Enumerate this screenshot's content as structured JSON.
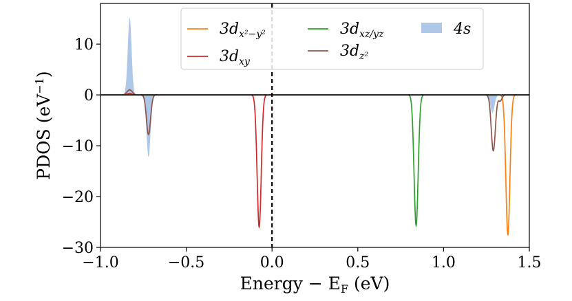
{
  "chart_data": {
    "type": "area",
    "title": "",
    "xlabel": "Energy − E",
    "xlabel_sub": "F",
    "xlabel_unit": " (eV)",
    "ylabel": "PDOS (eV",
    "ylabel_sup": "−1",
    "ylabel_close": ")",
    "xlim": [
      -1.0,
      1.5
    ],
    "ylim": [
      -30,
      18
    ],
    "xticks": [
      -1.0,
      -0.5,
      0.0,
      0.5,
      1.0,
      1.5
    ],
    "xtick_labels": [
      "−1.0",
      "−0.5",
      "0.0",
      "0.5",
      "1.0",
      "1.5"
    ],
    "yticks": [
      10,
      0,
      -10,
      -20,
      -30
    ],
    "ytick_labels": [
      "10",
      "0",
      "−10",
      "−20",
      "−30"
    ],
    "fermi_level_x": 0.0,
    "legend_position": "top-center",
    "series": [
      {
        "name": "3d_{x²−y²}",
        "legend_main": "3d",
        "legend_sub": "x²−y²",
        "color": "#ff7f0e",
        "style": "line",
        "peaks": [
          {
            "x": -0.83,
            "height": 0.3,
            "width": 0.012
          },
          {
            "x": 1.375,
            "height": -27.5,
            "width": 0.012
          }
        ]
      },
      {
        "name": "3d_{xy}",
        "legend_main": "3d",
        "legend_sub": "xy",
        "color": "#d62728",
        "style": "line",
        "peaks": [
          {
            "x": -0.83,
            "height": 0.3,
            "width": 0.012
          },
          {
            "x": -0.075,
            "height": -26.0,
            "width": 0.012
          }
        ]
      },
      {
        "name": "3d_{xz/yz}",
        "legend_main": "3d",
        "legend_sub": "xz/yz",
        "color": "#2ca02c",
        "style": "line",
        "peaks": [
          {
            "x": 0.84,
            "height": -25.7,
            "width": 0.012
          }
        ]
      },
      {
        "name": "3d_{z²}",
        "legend_main": "3d",
        "legend_sub": "z²",
        "color": "#8c564b",
        "style": "line",
        "peaks": [
          {
            "x": -0.83,
            "height": 1.0,
            "width": 0.015
          },
          {
            "x": -0.72,
            "height": -7.8,
            "width": 0.012
          },
          {
            "x": 1.29,
            "height": -11.0,
            "width": 0.012
          },
          {
            "x": 1.33,
            "height": -1.2,
            "width": 0.01
          }
        ]
      },
      {
        "name": "4s",
        "legend_main": "4s",
        "legend_sub": "",
        "color": "#aec7e8",
        "style": "fill",
        "peaks": [
          {
            "x": -0.83,
            "height": 15.2,
            "width": 0.011
          },
          {
            "x": -0.72,
            "height": -12.2,
            "width": 0.012
          },
          {
            "x": 1.285,
            "height": -3.5,
            "width": 0.012
          }
        ]
      }
    ]
  }
}
